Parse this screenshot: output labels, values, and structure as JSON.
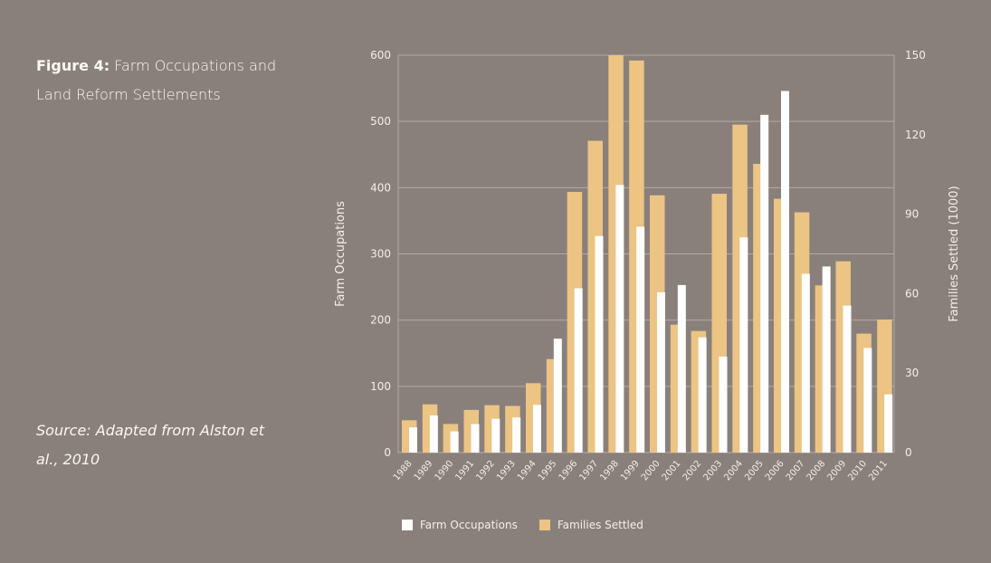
{
  "caption": {
    "figure_label": "Figure 4:",
    "title": "Farm Occupations and Land Reform Settlements"
  },
  "source": "Source: Adapted from Alston et al., 2010",
  "colors": {
    "background": "#8a807b",
    "families_bar": "#ecc484",
    "occupations_bar": "#ffffff",
    "grid": "#b3aaa5",
    "text": "#f3eee9"
  },
  "chart_data": {
    "type": "bar",
    "categories": [
      "1988",
      "1989",
      "1990",
      "1991",
      "1992",
      "1993",
      "1994",
      "1995",
      "1996",
      "1997",
      "1998",
      "1999",
      "2000",
      "2001",
      "2002",
      "2003",
      "2004",
      "2005",
      "2006",
      "2007",
      "2008",
      "2009",
      "2010",
      "2011"
    ],
    "series": [
      {
        "name": "Farm Occupations",
        "axis": "left",
        "values": [
          38,
          56,
          32,
          43,
          51,
          53,
          72,
          172,
          248,
          327,
          404,
          341,
          242,
          253,
          174,
          145,
          325,
          510,
          546,
          270,
          281,
          222,
          158,
          88
        ]
      },
      {
        "name": "Families Settled",
        "axis": "right",
        "values": [
          12.2,
          18.2,
          10.8,
          16.1,
          17.9,
          17.6,
          26.2,
          35.3,
          98.4,
          117.7,
          150.0,
          148.0,
          97.1,
          48.3,
          45.9,
          97.7,
          123.8,
          109.0,
          95.8,
          90.7,
          63.1,
          72.2,
          44.9,
          50.2
        ]
      }
    ],
    "ylabel": "Farm Occupations",
    "y2label": "Families Settled (1000)",
    "ylim": [
      0,
      600
    ],
    "y2lim": [
      0,
      150
    ],
    "yticks": [
      0,
      100,
      200,
      300,
      400,
      500,
      600
    ],
    "y2ticks": [
      0,
      30,
      60,
      90,
      120,
      150
    ],
    "grid": true,
    "legend_position": "bottom",
    "legend": [
      "Farm Occupations",
      "Families Settled"
    ]
  }
}
